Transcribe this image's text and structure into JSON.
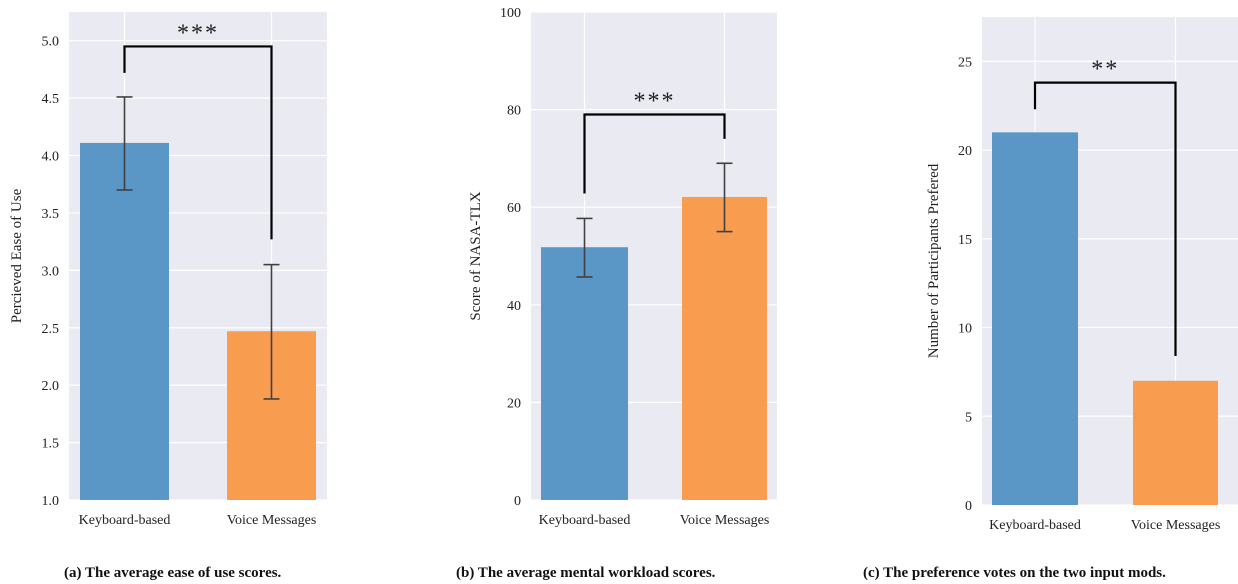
{
  "colors": {
    "keyboard": "#5b97c6",
    "voice": "#f89c50",
    "panel_bg": "#eaeaf2",
    "grid": "#ffffff",
    "bracket": "#000000",
    "errorbar": "#404040"
  },
  "chart_data": [
    {
      "type": "bar",
      "categories": [
        "Keyboard-based",
        "Voice Messages"
      ],
      "values": [
        4.11,
        2.47
      ],
      "error": [
        [
          3.7,
          4.51
        ],
        [
          1.88,
          3.05
        ]
      ],
      "ylabel": "Percieved Ease of Use",
      "ylim": [
        1.0,
        5.25
      ],
      "yticks": [
        "1.0",
        "1.5",
        "2.0",
        "2.5",
        "3.0",
        "3.5",
        "4.0",
        "4.5",
        "5.0"
      ],
      "ytick_values": [
        1.0,
        1.5,
        2.0,
        2.5,
        3.0,
        3.5,
        4.0,
        4.5,
        5.0
      ],
      "significance": "***",
      "bracket": {
        "level": 4.95,
        "left_bottom": 4.72,
        "right_bottom": 3.27
      },
      "grid": true,
      "caption": "(a) The average ease of use scores."
    },
    {
      "type": "bar",
      "categories": [
        "Keyboard-based",
        "Voice Messages"
      ],
      "values": [
        51.8,
        62.1
      ],
      "error": [
        [
          45.7,
          57.7
        ],
        [
          55.0,
          69.0
        ]
      ],
      "ylabel": "Score of NASA-TLX",
      "ylim": [
        0,
        100
      ],
      "yticks": [
        "0",
        "20",
        "40",
        "60",
        "80",
        "100"
      ],
      "ytick_values": [
        0,
        20,
        40,
        60,
        80,
        100
      ],
      "significance": "***",
      "bracket": {
        "level": 79.0,
        "left_bottom": 62.8,
        "right_bottom": 74.0
      },
      "grid": true,
      "caption": "(b) The average mental workload scores."
    },
    {
      "type": "bar",
      "categories": [
        "Keyboard-based",
        "Voice Messages"
      ],
      "values": [
        21,
        7
      ],
      "ylabel": "Number of Participants Prefered",
      "ylim": [
        0,
        27.5
      ],
      "yticks": [
        "0",
        "5",
        "10",
        "15",
        "20",
        "25"
      ],
      "ytick_values": [
        0,
        5,
        10,
        15,
        20,
        25
      ],
      "significance": "**",
      "bracket": {
        "level": 23.8,
        "left_bottom": 22.3,
        "right_bottom": 8.4
      },
      "grid": true,
      "caption": "(c) The preference votes on the two input mods."
    }
  ]
}
